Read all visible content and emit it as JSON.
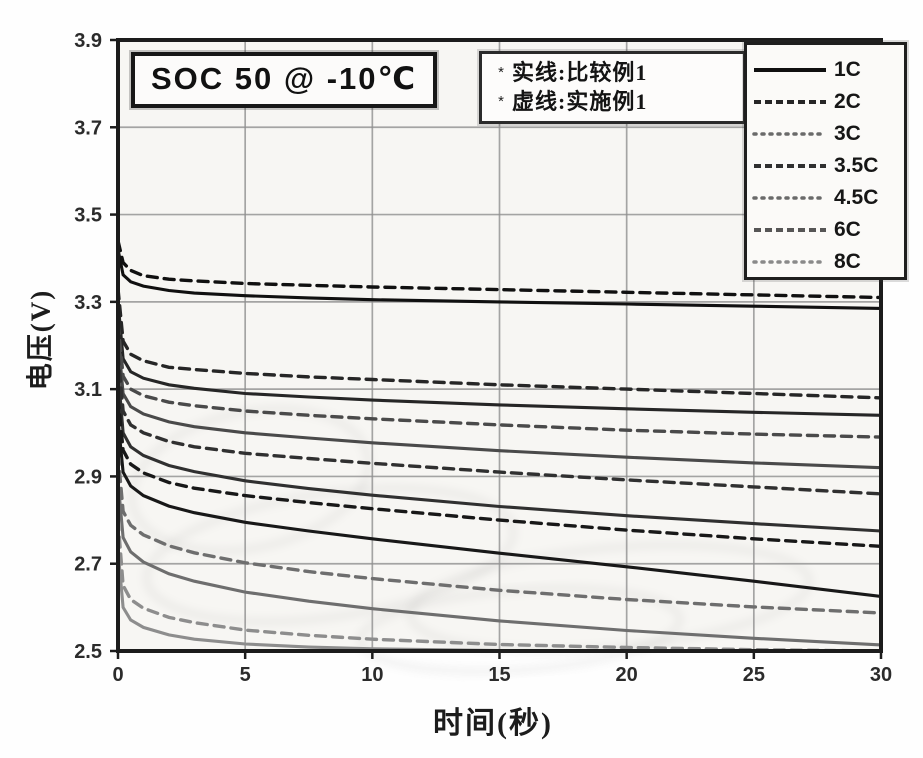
{
  "figure": {
    "title": "SOC 50 @ -10℃",
    "note": {
      "bullet": "*",
      "line1": "实线:比较例1",
      "line2": "虚线:实施例1"
    }
  },
  "colors": {
    "ink": "#1a1a1a",
    "grid": "#909090",
    "frame": "#1c1c1c",
    "paper": "#f7f6f3"
  },
  "chart_data": {
    "type": "line",
    "title": "SOC 50 @ -10℃",
    "xlabel": "时间(秒)",
    "ylabel": "电压(V)",
    "xlim": [
      0,
      30
    ],
    "ylim": [
      2.5,
      3.9
    ],
    "x_ticks": [
      0,
      5,
      10,
      15,
      20,
      25,
      30
    ],
    "y_ticks": [
      2.5,
      2.7,
      2.9,
      3.1,
      3.3,
      3.5,
      3.7,
      3.9
    ],
    "grid": true,
    "legend_position": "top-right",
    "annotations": [
      "实线:比较例1",
      "虚线:实施例1"
    ],
    "x": [
      0,
      0.2,
      0.5,
      1,
      2,
      3,
      5,
      7.5,
      10,
      15,
      20,
      25,
      30
    ],
    "series": [
      {
        "name": "1C 实施例1",
        "rate": "1C",
        "example": "实施例1",
        "style": "dashed",
        "color": "#101010",
        "values": [
          3.44,
          3.39,
          3.372,
          3.36,
          3.352,
          3.348,
          3.342,
          3.338,
          3.334,
          3.328,
          3.322,
          3.316,
          3.31
        ]
      },
      {
        "name": "1C 比较例1",
        "rate": "1C",
        "example": "比较例1",
        "style": "solid",
        "color": "#101010",
        "values": [
          3.42,
          3.362,
          3.346,
          3.336,
          3.326,
          3.32,
          3.314,
          3.309,
          3.305,
          3.3,
          3.295,
          3.29,
          3.285
        ]
      },
      {
        "name": "2C 实施例1",
        "rate": "2C",
        "example": "实施例1",
        "style": "dashed",
        "color": "#262626",
        "values": [
          3.33,
          3.21,
          3.18,
          3.165,
          3.15,
          3.145,
          3.136,
          3.128,
          3.122,
          3.11,
          3.1,
          3.09,
          3.08
        ]
      },
      {
        "name": "2C 比较例1",
        "rate": "2C",
        "example": "比较例1",
        "style": "solid",
        "color": "#262626",
        "values": [
          3.3,
          3.17,
          3.14,
          3.125,
          3.11,
          3.102,
          3.09,
          3.082,
          3.075,
          3.064,
          3.055,
          3.047,
          3.04
        ]
      },
      {
        "name": "3C 实施例1",
        "rate": "3C",
        "example": "实施例1",
        "style": "dashed",
        "color": "#4a4a4a",
        "values": [
          3.25,
          3.13,
          3.1,
          3.085,
          3.07,
          3.062,
          3.05,
          3.04,
          3.032,
          3.018,
          3.006,
          2.997,
          2.99
        ]
      },
      {
        "name": "3C 比较例1",
        "rate": "3C",
        "example": "比较例1",
        "style": "solid",
        "color": "#4a4a4a",
        "values": [
          3.22,
          3.09,
          3.06,
          3.043,
          3.025,
          3.014,
          3.0,
          2.988,
          2.977,
          2.959,
          2.944,
          2.931,
          2.92
        ]
      },
      {
        "name": "3.5C 实施例1",
        "rate": "3.5C",
        "example": "实施例1",
        "style": "dashed",
        "color": "#303030",
        "values": [
          3.18,
          3.05,
          3.018,
          3.0,
          2.98,
          2.968,
          2.953,
          2.941,
          2.93,
          2.91,
          2.892,
          2.876,
          2.86
        ]
      },
      {
        "name": "3.5C 比较例1",
        "rate": "3.5C",
        "example": "比较例1",
        "style": "solid",
        "color": "#303030",
        "values": [
          3.14,
          3.0,
          2.968,
          2.948,
          2.925,
          2.911,
          2.89,
          2.872,
          2.857,
          2.831,
          2.81,
          2.792,
          2.775
        ]
      },
      {
        "name": "4.5C 实施例1",
        "rate": "4.5C",
        "example": "实施例1",
        "style": "dashed",
        "color": "#181818",
        "values": [
          3.08,
          2.96,
          2.928,
          2.908,
          2.886,
          2.873,
          2.856,
          2.84,
          2.826,
          2.8,
          2.777,
          2.757,
          2.74
        ]
      },
      {
        "name": "4.5C 比较例1",
        "rate": "4.5C",
        "example": "比较例1",
        "style": "solid",
        "color": "#181818",
        "values": [
          3.03,
          2.91,
          2.878,
          2.856,
          2.832,
          2.817,
          2.795,
          2.775,
          2.757,
          2.724,
          2.693,
          2.66,
          2.625
        ]
      },
      {
        "name": "6C 实施例1",
        "rate": "6C",
        "example": "实施例1",
        "style": "dashed",
        "color": "#6e6e6e",
        "values": [
          2.95,
          2.82,
          2.788,
          2.766,
          2.741,
          2.725,
          2.702,
          2.682,
          2.666,
          2.639,
          2.618,
          2.601,
          2.587
        ]
      },
      {
        "name": "6C 比较例1",
        "rate": "6C",
        "example": "比较例1",
        "style": "solid",
        "color": "#6e6e6e",
        "values": [
          2.89,
          2.76,
          2.727,
          2.704,
          2.677,
          2.66,
          2.635,
          2.614,
          2.597,
          2.569,
          2.547,
          2.529,
          2.514
        ]
      },
      {
        "name": "8C 实施例1",
        "rate": "8C",
        "example": "实施例1",
        "style": "dashed",
        "color": "#8d8d8d",
        "values": [
          2.8,
          2.65,
          2.618,
          2.598,
          2.577,
          2.565,
          2.548,
          2.536,
          2.527,
          2.515,
          2.508,
          2.503,
          2.5
        ]
      },
      {
        "name": "8C 比较例1",
        "rate": "8C",
        "example": "比较例1",
        "style": "solid",
        "color": "#8d8d8d",
        "values": [
          2.73,
          2.6,
          2.571,
          2.554,
          2.537,
          2.527,
          2.516,
          2.509,
          2.505,
          2.501,
          2.5,
          2.5,
          2.5
        ]
      }
    ],
    "legend": [
      {
        "label": "1C",
        "style": "solid",
        "color": "#101010"
      },
      {
        "label": "2C",
        "style": "dashed",
        "color": "#262626"
      },
      {
        "label": "3C",
        "style": "dotted",
        "color": "#6a6a6a"
      },
      {
        "label": "3.5C",
        "style": "dashed",
        "color": "#303030"
      },
      {
        "label": "4.5C",
        "style": "dotted",
        "color": "#6a6a6a"
      },
      {
        "label": "6C",
        "style": "dashed",
        "color": "#565656"
      },
      {
        "label": "8C",
        "style": "dotted",
        "color": "#8a8a8a"
      }
    ]
  }
}
